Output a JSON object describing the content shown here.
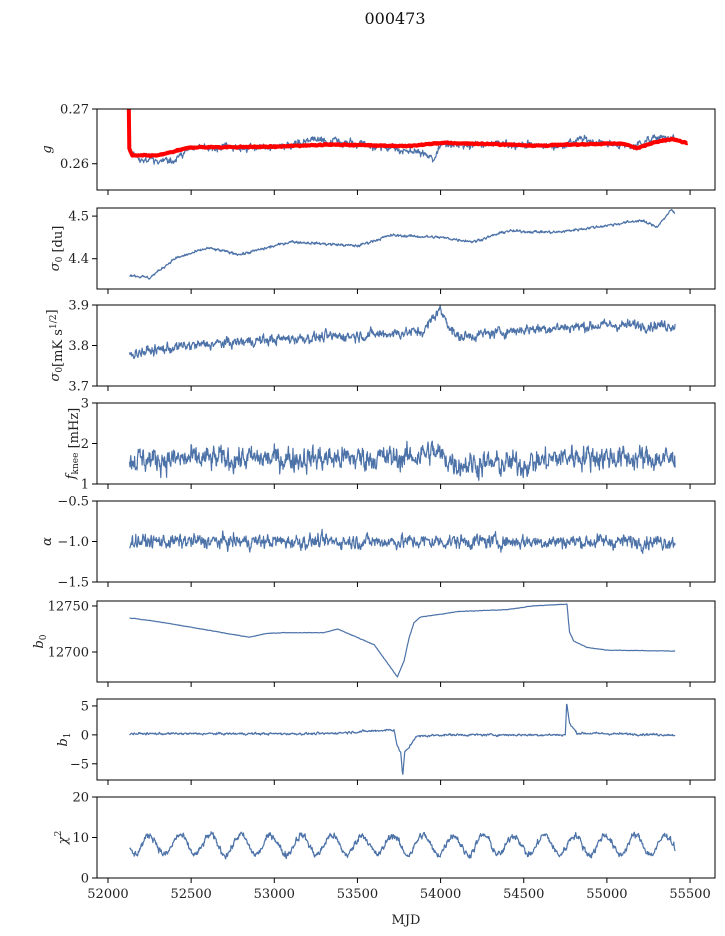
{
  "chart_data": {
    "type": "line",
    "title": "000473",
    "xlabel": "MJD",
    "xlim": [
      51934,
      55650
    ],
    "xticks": [
      52000,
      52500,
      53000,
      53500,
      54000,
      54500,
      55000,
      55500
    ],
    "series_color": "#4c72a8",
    "fit_color": "#ff0000",
    "panels": [
      {
        "ylabel": [
          {
            "t": "g",
            "s": "it"
          }
        ],
        "ylim": [
          0.2552,
          0.27
        ],
        "yticks": [
          0.26,
          0.27
        ],
        "ytick_labels": [
          "0.26",
          "0.27"
        ],
        "series": [
          {
            "name": "g",
            "noise": 0.0006,
            "points": [
              [
                52130,
                0.2625
              ],
              [
                52200,
                0.2605
              ],
              [
                52400,
                0.2608
              ],
              [
                52500,
                0.263
              ],
              [
                53000,
                0.263
              ],
              [
                53250,
                0.2645
              ],
              [
                53500,
                0.2635
              ],
              [
                53900,
                0.262
              ],
              [
                53960,
                0.2605
              ],
              [
                54000,
                0.2635
              ],
              [
                54500,
                0.2635
              ],
              [
                54700,
                0.2632
              ],
              [
                54850,
                0.2645
              ],
              [
                55000,
                0.2637
              ],
              [
                55150,
                0.2632
              ],
              [
                55300,
                0.2648
              ],
              [
                55410,
                0.2645
              ]
            ]
          },
          {
            "name": "g fit",
            "color": "fit",
            "width": 4,
            "noise": 0.0001,
            "points": [
              [
                52125,
                0.2705
              ],
              [
                52128,
                0.2628
              ],
              [
                52145,
                0.2615
              ],
              [
                52300,
                0.2615
              ],
              [
                52500,
                0.263
              ],
              [
                53000,
                0.2631
              ],
              [
                53300,
                0.2635
              ],
              [
                53550,
                0.2634
              ],
              [
                53800,
                0.2632
              ],
              [
                54000,
                0.2638
              ],
              [
                54300,
                0.2636
              ],
              [
                54600,
                0.2633
              ],
              [
                54900,
                0.2636
              ],
              [
                55100,
                0.2637
              ],
              [
                55180,
                0.2628
              ],
              [
                55300,
                0.2641
              ],
              [
                55390,
                0.2645
              ],
              [
                55486,
                0.2638
              ]
            ]
          }
        ]
      },
      {
        "ylabel": [
          {
            "t": "σ",
            "s": "it"
          },
          {
            "t": "0",
            "s": "sub"
          },
          {
            "t": " [du]"
          }
        ],
        "ylim": [
          4.329,
          4.519
        ],
        "yticks": [
          4.4,
          4.5
        ],
        "ytick_labels": [
          "4.4",
          "4.5"
        ],
        "series": [
          {
            "name": "sigma0_du",
            "noise": 0.003,
            "points": [
              [
                52130,
                4.362
              ],
              [
                52250,
                4.355
              ],
              [
                52400,
                4.4
              ],
              [
                52600,
                4.425
              ],
              [
                52800,
                4.41
              ],
              [
                53100,
                4.44
              ],
              [
                53500,
                4.43
              ],
              [
                53700,
                4.455
              ],
              [
                54000,
                4.45
              ],
              [
                54200,
                4.44
              ],
              [
                54400,
                4.465
              ],
              [
                54700,
                4.462
              ],
              [
                55000,
                4.478
              ],
              [
                55200,
                4.49
              ],
              [
                55300,
                4.475
              ],
              [
                55390,
                4.515
              ],
              [
                55410,
                4.505
              ]
            ]
          }
        ]
      },
      {
        "ylabel": [
          {
            "t": "σ",
            "s": "it"
          },
          {
            "t": "0",
            "s": "sub"
          },
          {
            "t": "[mK s"
          },
          {
            "t": "1/2",
            "s": "sup"
          },
          {
            "t": "]"
          }
        ],
        "ylim": [
          3.7,
          3.9
        ],
        "yticks": [
          3.7,
          3.8,
          3.9
        ],
        "ytick_labels": [
          "3.7",
          "3.8",
          "3.9"
        ],
        "series": [
          {
            "name": "sigma0_mK",
            "noise": 0.012,
            "points": [
              [
                52130,
                3.78
              ],
              [
                52500,
                3.8
              ],
              [
                53000,
                3.815
              ],
              [
                53500,
                3.825
              ],
              [
                53900,
                3.835
              ],
              [
                53990,
                3.89
              ],
              [
                54100,
                3.82
              ],
              [
                54500,
                3.84
              ],
              [
                55000,
                3.85
              ],
              [
                55410,
                3.85
              ]
            ]
          }
        ]
      },
      {
        "ylabel": [
          {
            "t": "f",
            "s": "it"
          },
          {
            "t": "knee",
            "s": "sub"
          },
          {
            "t": " [mHz]"
          }
        ],
        "ylim": [
          1,
          3
        ],
        "yticks": [
          1,
          2,
          3
        ],
        "ytick_labels": [
          "1",
          "2",
          "3"
        ],
        "series": [
          {
            "name": "fknee",
            "noise": 0.28,
            "points": [
              [
                52130,
                1.6
              ],
              [
                53800,
                1.65
              ],
              [
                53950,
                1.8
              ],
              [
                54100,
                1.5
              ],
              [
                54500,
                1.5
              ],
              [
                54800,
                1.7
              ],
              [
                55410,
                1.6
              ]
            ]
          }
        ]
      },
      {
        "ylabel": [
          {
            "t": "α",
            "s": "it"
          }
        ],
        "ylim": [
          -1.5,
          -0.5
        ],
        "yticks": [
          -1.5,
          -1.0,
          -0.5
        ],
        "ytick_labels": [
          "−1.5",
          "−1.0",
          "−0.5"
        ],
        "series": [
          {
            "name": "alpha",
            "noise": 0.08,
            "points": [
              [
                52130,
                -1.0
              ],
              [
                55410,
                -1.0
              ]
            ]
          }
        ]
      },
      {
        "ylabel": [
          {
            "t": "b",
            "s": "it"
          },
          {
            "t": "0",
            "s": "sub"
          }
        ],
        "ylim": [
          12667.4,
          12755.4
        ],
        "yticks": [
          12700,
          12750
        ],
        "ytick_labels": [
          "12700",
          "12750"
        ],
        "series": [
          {
            "name": "b0",
            "noise": 0.25,
            "points": [
              [
                52130,
                12737
              ],
              [
                52300,
                12733
              ],
              [
                52850,
                12716
              ],
              [
                52950,
                12720
              ],
              [
                53050,
                12721
              ],
              [
                53300,
                12721
              ],
              [
                53380,
                12725
              ],
              [
                53600,
                12708
              ],
              [
                53740,
                12673
              ],
              [
                53780,
                12690
              ],
              [
                53810,
                12715
              ],
              [
                53840,
                12732
              ],
              [
                53880,
                12738
              ],
              [
                54000,
                12741
              ],
              [
                54100,
                12744
              ],
              [
                54400,
                12746
              ],
              [
                54550,
                12750
              ],
              [
                54760,
                12752
              ],
              [
                54775,
                12722
              ],
              [
                54800,
                12712
              ],
              [
                54880,
                12705
              ],
              [
                55000,
                12702
              ],
              [
                55410,
                12701
              ]
            ]
          }
        ]
      },
      {
        "ylabel": [
          {
            "t": "b",
            "s": "it"
          },
          {
            "t": "1",
            "s": "sub"
          }
        ],
        "ylim": [
          -7.8,
          6.2
        ],
        "yticks": [
          -5,
          0,
          5
        ],
        "ytick_labels": [
          "−5",
          "0",
          "5"
        ],
        "series": [
          {
            "name": "b1",
            "noise": 0.18,
            "points": [
              [
                52130,
                0.2
              ],
              [
                53300,
                0.2
              ],
              [
                53600,
                0.7
              ],
              [
                53720,
                0.9
              ],
              [
                53740,
                -2
              ],
              [
                53760,
                -3
              ],
              [
                53772,
                -7
              ],
              [
                53785,
                -3
              ],
              [
                53810,
                -2.2
              ],
              [
                53850,
                -0.3
              ],
              [
                54000,
                0
              ],
              [
                54750,
                0
              ],
              [
                54758,
                5.6
              ],
              [
                54775,
                2
              ],
              [
                54820,
                0.3
              ],
              [
                55410,
                0
              ]
            ]
          }
        ]
      },
      {
        "ylabel": [
          {
            "t": "χ",
            "s": "it"
          },
          {
            "t": "2",
            "s": "sup"
          }
        ],
        "ylim": [
          0,
          20
        ],
        "yticks": [
          0,
          10,
          20
        ],
        "ytick_labels": [
          "0",
          "10",
          "20"
        ],
        "series": [
          {
            "name": "chi2",
            "noise": 0.8,
            "model": {
              "mean": 8.2,
              "amplitude": 2.4,
              "period_days": 182.6,
              "peak_mjd": 52250
            },
            "points": [
              [
                52130,
                7
              ],
              [
                55410,
                11
              ]
            ]
          }
        ]
      }
    ]
  }
}
